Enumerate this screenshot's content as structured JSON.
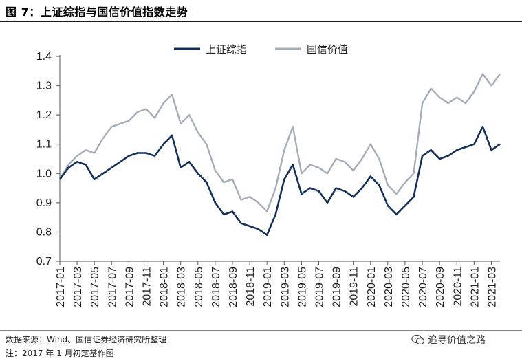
{
  "figure": {
    "title": "图 7：上证综指与国信价值指数走势",
    "source": "数据来源：Wind、国信证券经济研究所整理",
    "note": "注：2017 年 1 月初定基作图",
    "watermark": "追寻价值之路",
    "watermark_icon": "wechat-icon"
  },
  "chart_data": {
    "type": "line",
    "title": "",
    "xlabel": "",
    "ylabel": "",
    "ylim": [
      0.7,
      1.4
    ],
    "yticks": [
      "0.7",
      "0.8",
      "0.9",
      "1.0",
      "1.1",
      "1.2",
      "1.3",
      "1.4"
    ],
    "xticks": [
      "2017-01",
      "2017-03",
      "2017-05",
      "2017-07",
      "2017-09",
      "2017-11",
      "2018-01",
      "2018-03",
      "2018-05",
      "2018-07",
      "2018-09",
      "2018-11",
      "2019-01",
      "2019-03",
      "2019-05",
      "2019-07",
      "2019-09",
      "2019-11",
      "2020-01",
      "2020-03",
      "2020-05",
      "2020-07",
      "2020-09",
      "2020-11",
      "2021-01",
      "2021-03"
    ],
    "x_range": [
      "2017-01",
      "2021-04"
    ],
    "legend_position": "top-center",
    "grid": false,
    "series": [
      {
        "name": "上证综指",
        "color": "#14305a",
        "points": [
          [
            "2017-01",
            0.98
          ],
          [
            "2017-02",
            1.02
          ],
          [
            "2017-03",
            1.04
          ],
          [
            "2017-04",
            1.03
          ],
          [
            "2017-05",
            0.98
          ],
          [
            "2017-06",
            1.0
          ],
          [
            "2017-07",
            1.02
          ],
          [
            "2017-08",
            1.04
          ],
          [
            "2017-09",
            1.06
          ],
          [
            "2017-10",
            1.07
          ],
          [
            "2017-11",
            1.07
          ],
          [
            "2017-12",
            1.06
          ],
          [
            "2018-01",
            1.1
          ],
          [
            "2018-02",
            1.13
          ],
          [
            "2018-03",
            1.02
          ],
          [
            "2018-04",
            1.04
          ],
          [
            "2018-05",
            1.0
          ],
          [
            "2018-06",
            0.97
          ],
          [
            "2018-07",
            0.9
          ],
          [
            "2018-08",
            0.86
          ],
          [
            "2018-09",
            0.87
          ],
          [
            "2018-10",
            0.83
          ],
          [
            "2018-11",
            0.82
          ],
          [
            "2018-12",
            0.81
          ],
          [
            "2019-01",
            0.79
          ],
          [
            "2019-02",
            0.86
          ],
          [
            "2019-03",
            0.98
          ],
          [
            "2019-04",
            1.03
          ],
          [
            "2019-05",
            0.93
          ],
          [
            "2019-06",
            0.95
          ],
          [
            "2019-07",
            0.94
          ],
          [
            "2019-08",
            0.9
          ],
          [
            "2019-09",
            0.95
          ],
          [
            "2019-10",
            0.94
          ],
          [
            "2019-11",
            0.92
          ],
          [
            "2019-12",
            0.95
          ],
          [
            "2020-01",
            0.99
          ],
          [
            "2020-02",
            0.96
          ],
          [
            "2020-03",
            0.89
          ],
          [
            "2020-04",
            0.86
          ],
          [
            "2020-05",
            0.89
          ],
          [
            "2020-06",
            0.92
          ],
          [
            "2020-07",
            1.06
          ],
          [
            "2020-08",
            1.08
          ],
          [
            "2020-09",
            1.05
          ],
          [
            "2020-10",
            1.06
          ],
          [
            "2020-11",
            1.08
          ],
          [
            "2020-12",
            1.09
          ],
          [
            "2021-01",
            1.1
          ],
          [
            "2021-02",
            1.16
          ],
          [
            "2021-03",
            1.08
          ],
          [
            "2021-04",
            1.1
          ]
        ]
      },
      {
        "name": "国信价值",
        "color": "#a4adb8",
        "points": [
          [
            "2017-01",
            0.98
          ],
          [
            "2017-02",
            1.03
          ],
          [
            "2017-03",
            1.06
          ],
          [
            "2017-04",
            1.08
          ],
          [
            "2017-05",
            1.07
          ],
          [
            "2017-06",
            1.12
          ],
          [
            "2017-07",
            1.16
          ],
          [
            "2017-08",
            1.17
          ],
          [
            "2017-09",
            1.18
          ],
          [
            "2017-10",
            1.21
          ],
          [
            "2017-11",
            1.22
          ],
          [
            "2017-12",
            1.19
          ],
          [
            "2018-01",
            1.24
          ],
          [
            "2018-02",
            1.27
          ],
          [
            "2018-03",
            1.17
          ],
          [
            "2018-04",
            1.2
          ],
          [
            "2018-05",
            1.14
          ],
          [
            "2018-06",
            1.1
          ],
          [
            "2018-07",
            1.01
          ],
          [
            "2018-08",
            0.97
          ],
          [
            "2018-09",
            0.98
          ],
          [
            "2018-10",
            0.91
          ],
          [
            "2018-11",
            0.92
          ],
          [
            "2018-12",
            0.9
          ],
          [
            "2019-01",
            0.87
          ],
          [
            "2019-02",
            0.95
          ],
          [
            "2019-03",
            1.08
          ],
          [
            "2019-04",
            1.16
          ],
          [
            "2019-05",
            1.0
          ],
          [
            "2019-06",
            1.03
          ],
          [
            "2019-07",
            1.02
          ],
          [
            "2019-08",
            1.0
          ],
          [
            "2019-09",
            1.05
          ],
          [
            "2019-10",
            1.04
          ],
          [
            "2019-11",
            1.01
          ],
          [
            "2019-12",
            1.05
          ],
          [
            "2020-01",
            1.1
          ],
          [
            "2020-02",
            1.05
          ],
          [
            "2020-03",
            0.96
          ],
          [
            "2020-04",
            0.93
          ],
          [
            "2020-05",
            0.97
          ],
          [
            "2020-06",
            1.0
          ],
          [
            "2020-07",
            1.24
          ],
          [
            "2020-08",
            1.29
          ],
          [
            "2020-09",
            1.26
          ],
          [
            "2020-10",
            1.24
          ],
          [
            "2020-11",
            1.26
          ],
          [
            "2020-12",
            1.24
          ],
          [
            "2021-01",
            1.28
          ],
          [
            "2021-02",
            1.34
          ],
          [
            "2021-03",
            1.3
          ],
          [
            "2021-04",
            1.34
          ]
        ]
      }
    ]
  }
}
